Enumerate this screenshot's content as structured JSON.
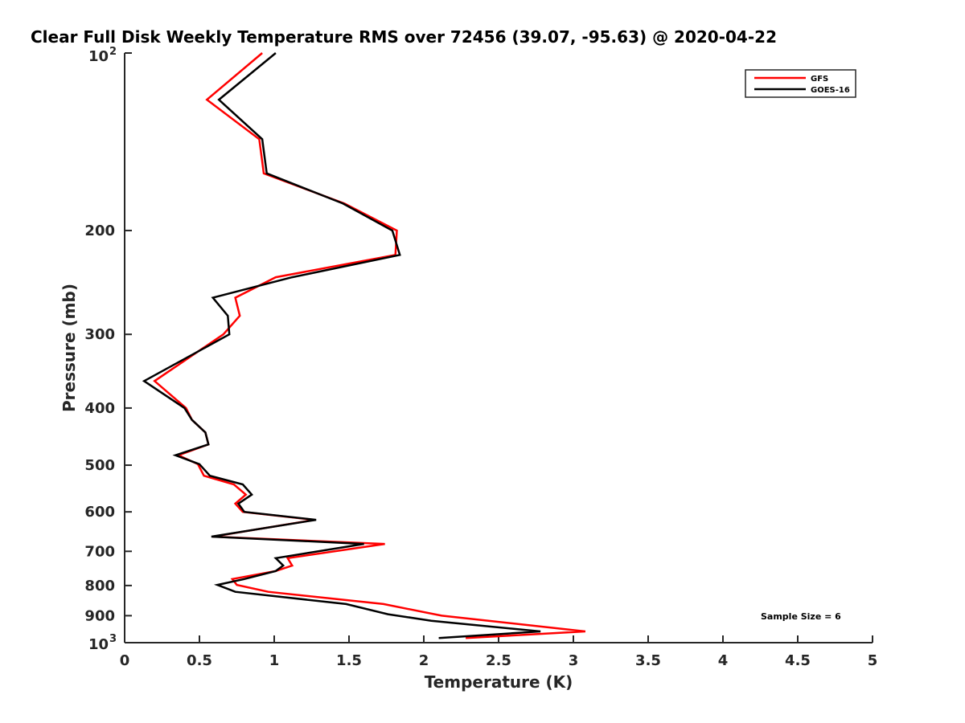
{
  "chart_data": {
    "type": "line",
    "title": "Clear Full Disk Weekly Temperature RMS over 72456 (39.07, -95.63) @ 2020-04-22",
    "xlabel": "Temperature (K)",
    "ylabel": "Pressure (mb)",
    "xlim": [
      0,
      5
    ],
    "ylim": [
      100,
      1000
    ],
    "yscale": "log",
    "y_reversed": true,
    "grid": false,
    "xticks": [
      "0",
      "0.5",
      "1",
      "1.5",
      "2",
      "2.5",
      "3",
      "3.5",
      "4",
      "4.5",
      "5"
    ],
    "yticks": [
      {
        "value": 100,
        "label": "10",
        "sup": "2"
      },
      {
        "value": 200,
        "label": "200"
      },
      {
        "value": 300,
        "label": "300"
      },
      {
        "value": 400,
        "label": "400"
      },
      {
        "value": 500,
        "label": "500"
      },
      {
        "value": 600,
        "label": "600"
      },
      {
        "value": 700,
        "label": "700"
      },
      {
        "value": 800,
        "label": "800"
      },
      {
        "value": 900,
        "label": "900"
      },
      {
        "value": 1000,
        "label": "10",
        "sup": "3"
      }
    ],
    "legend_position": "top-right",
    "annotation": "Sample Size = 6",
    "series": [
      {
        "name": "GFS",
        "color": "#ff0000",
        "points": [
          [
            0.92,
            100
          ],
          [
            0.55,
            120
          ],
          [
            0.9,
            140
          ],
          [
            0.93,
            160
          ],
          [
            1.47,
            180
          ],
          [
            1.82,
            200
          ],
          [
            1.81,
            220
          ],
          [
            1.01,
            240
          ],
          [
            0.74,
            260
          ],
          [
            0.77,
            279
          ],
          [
            0.66,
            300
          ],
          [
            0.2,
            360
          ],
          [
            0.41,
            400
          ],
          [
            0.45,
            419
          ],
          [
            0.54,
            440
          ],
          [
            0.56,
            461
          ],
          [
            0.36,
            481
          ],
          [
            0.49,
            498
          ],
          [
            0.53,
            521
          ],
          [
            0.73,
            539
          ],
          [
            0.81,
            561
          ],
          [
            0.74,
            581
          ],
          [
            0.79,
            600
          ],
          [
            1.27,
            619
          ],
          [
            0.59,
            661
          ],
          [
            1.74,
            680
          ],
          [
            1.09,
            719
          ],
          [
            1.12,
            740
          ],
          [
            1.01,
            756
          ],
          [
            0.72,
            780
          ],
          [
            0.75,
            798
          ],
          [
            0.96,
            820
          ],
          [
            1.73,
            860
          ],
          [
            2.12,
            900
          ],
          [
            3.08,
            957
          ],
          [
            2.28,
            982
          ]
        ]
      },
      {
        "name": "GOES-16",
        "color": "#000000",
        "points": [
          [
            1.01,
            100
          ],
          [
            0.63,
            120
          ],
          [
            0.92,
            140
          ],
          [
            0.95,
            160
          ],
          [
            1.46,
            180
          ],
          [
            1.79,
            200
          ],
          [
            1.84,
            220
          ],
          [
            1.12,
            240
          ],
          [
            0.59,
            260
          ],
          [
            0.69,
            279
          ],
          [
            0.7,
            300
          ],
          [
            0.13,
            360
          ],
          [
            0.4,
            400
          ],
          [
            0.45,
            419
          ],
          [
            0.54,
            440
          ],
          [
            0.56,
            461
          ],
          [
            0.34,
            481
          ],
          [
            0.5,
            498
          ],
          [
            0.57,
            521
          ],
          [
            0.79,
            539
          ],
          [
            0.85,
            561
          ],
          [
            0.76,
            581
          ],
          [
            0.8,
            600
          ],
          [
            1.28,
            619
          ],
          [
            0.58,
            661
          ],
          [
            1.6,
            680
          ],
          [
            1.01,
            719
          ],
          [
            1.06,
            740
          ],
          [
            1.01,
            756
          ],
          [
            0.8,
            780
          ],
          [
            0.62,
            798
          ],
          [
            0.74,
            820
          ],
          [
            1.48,
            860
          ],
          [
            1.76,
            895
          ],
          [
            2.05,
            918
          ],
          [
            2.78,
            957
          ],
          [
            2.1,
            982
          ]
        ]
      }
    ]
  }
}
